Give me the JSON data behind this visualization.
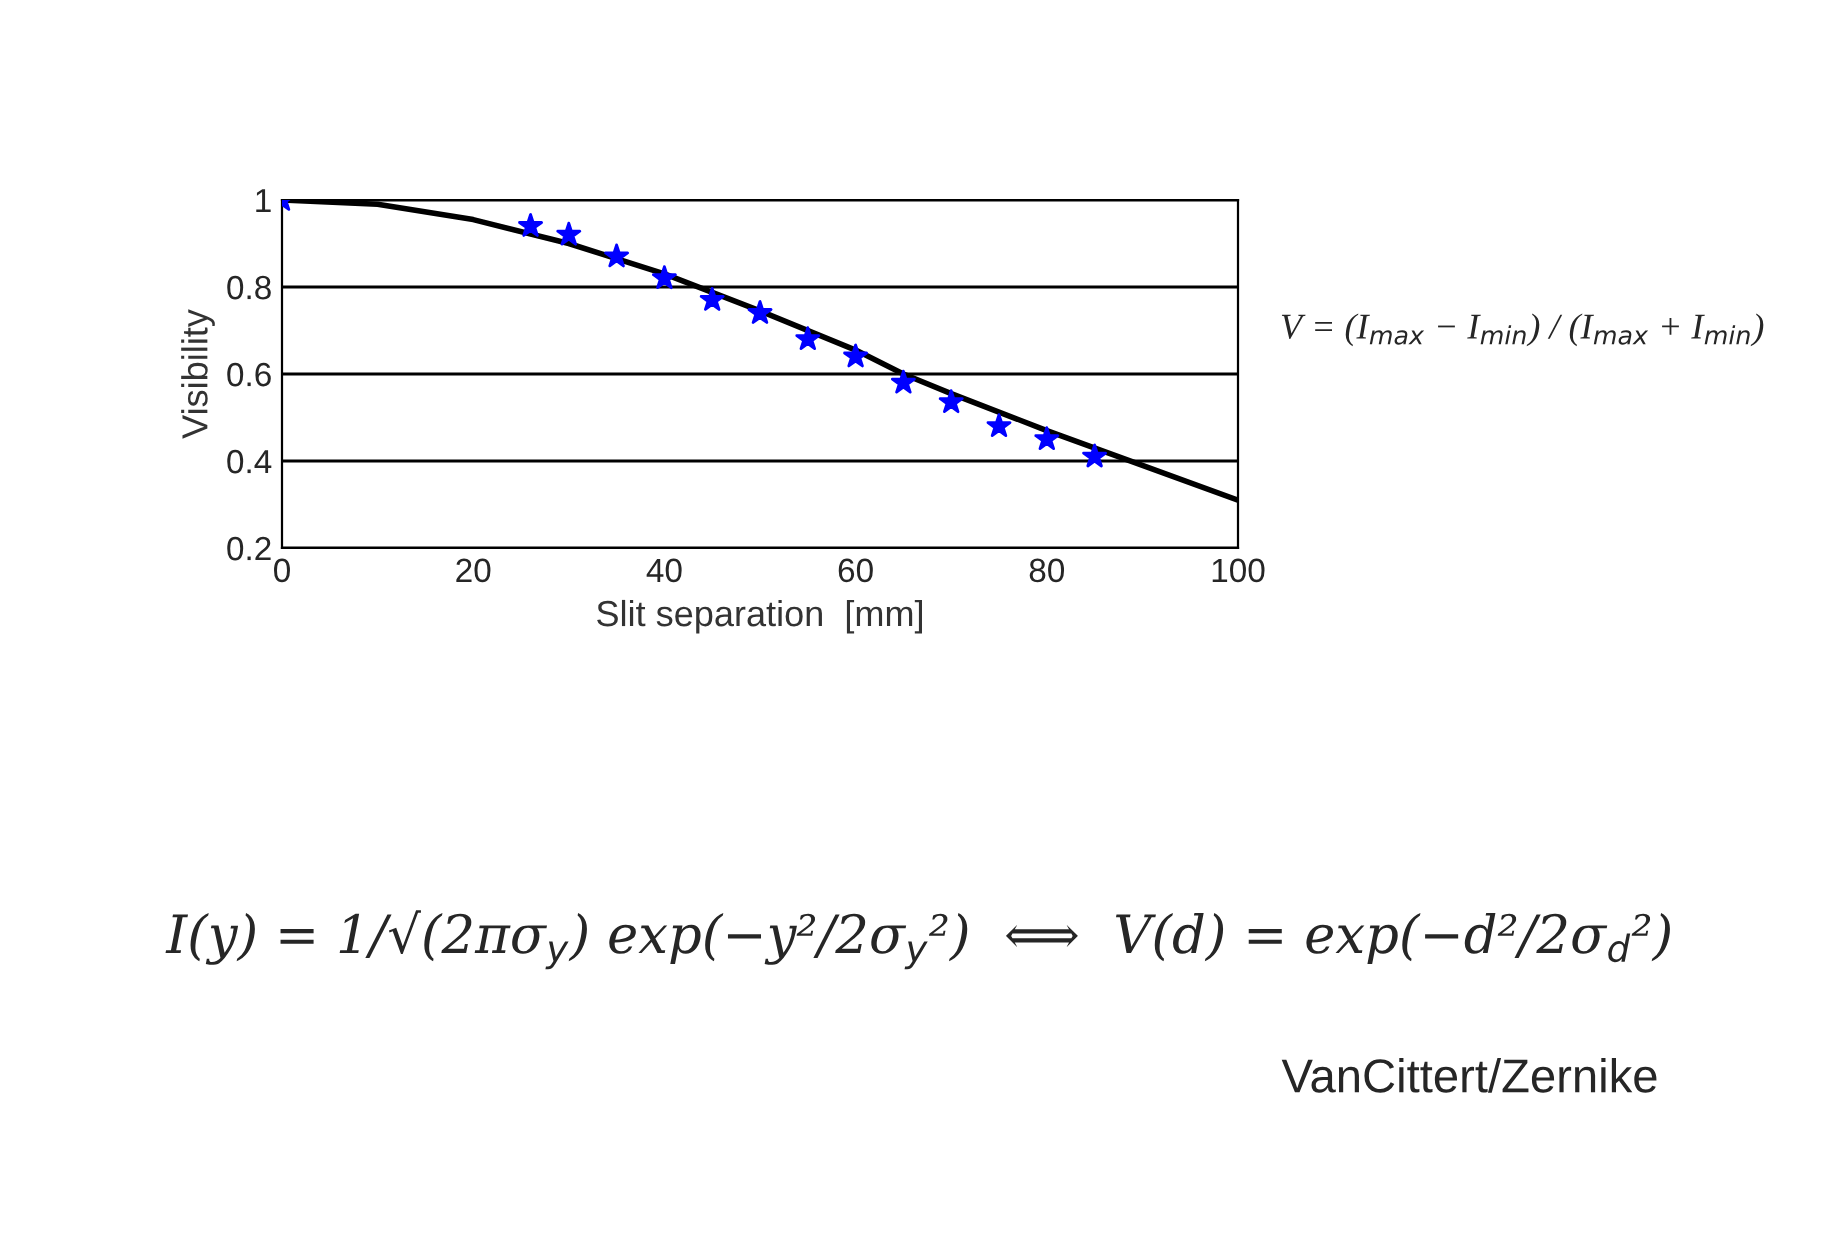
{
  "chart_data": {
    "type": "line",
    "xlabel": "Slit separation  [mm]",
    "ylabel": "Visibility",
    "xlim": [
      0,
      100
    ],
    "xticks": [
      0,
      20,
      40,
      60,
      80,
      100
    ],
    "ylim": [
      0.2,
      1
    ],
    "yticks": [
      0.2,
      0.4,
      0.6,
      0.8,
      1
    ],
    "grid": "y",
    "legend": false,
    "series": [
      {
        "color": "#000000",
        "marker": "none",
        "line_style": "solid",
        "x": [
          0,
          10,
          20,
          30,
          40,
          50,
          60,
          65,
          70,
          80,
          90,
          100
        ],
        "values": [
          1.0,
          0.99,
          0.955,
          0.9,
          0.83,
          0.745,
          0.655,
          0.6,
          0.555,
          0.47,
          0.39,
          0.31
        ]
      },
      {
        "type": "scatter",
        "color": "#0000ff",
        "marker": "star",
        "x": [
          0,
          26,
          30,
          35,
          40,
          45,
          50,
          55,
          60,
          65,
          70,
          75,
          80,
          85
        ],
        "values": [
          1.0,
          0.94,
          0.92,
          0.87,
          0.82,
          0.77,
          0.74,
          0.68,
          0.64,
          0.58,
          0.535,
          0.48,
          0.45,
          0.41
        ]
      }
    ],
    "annotations": [
      "V = (I$_{max}$ − I$_{min}$) / (I$_{max}$ + I$_{min}$)",
      "I(y) = 1/√(2πσ$_{y}$) exp(−y²/2σ$_{y}$²)  ⟺  V(d) = exp(−d²/2σ$_{d}$²)",
      "VanCittert/Zernike"
    ]
  }
}
